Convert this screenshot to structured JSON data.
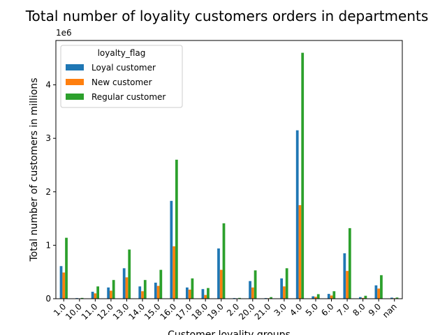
{
  "chart_data": {
    "type": "bar",
    "title": "Total number of loyality customers orders in departments",
    "xlabel": "Customer loyality groups",
    "ylabel": "Total number of customers in millions",
    "y_offset_label": "1e6",
    "ylim": [
      0,
      4.83
    ],
    "yticks": [
      0,
      1,
      2,
      3,
      4
    ],
    "categories": [
      "1.0",
      "10.0",
      "11.0",
      "12.0",
      "13.0",
      "14.0",
      "15.0",
      "16.0",
      "17.0",
      "18.0",
      "19.0",
      "2.0",
      "20.0",
      "21.0",
      "3.0",
      "4.0",
      "5.0",
      "6.0",
      "7.0",
      "8.0",
      "9.0",
      "nan"
    ],
    "legend": {
      "title": "loyalty_flag",
      "position": "upper-left"
    },
    "series": [
      {
        "name": "Loyal customer",
        "color": "#1f77b4",
        "values": [
          0.61,
          0.012,
          0.13,
          0.21,
          0.57,
          0.23,
          0.3,
          1.83,
          0.21,
          0.18,
          0.94,
          0.012,
          0.33,
          0.012,
          0.38,
          3.15,
          0.045,
          0.09,
          0.85,
          0.03,
          0.25,
          0.02
        ]
      },
      {
        "name": "New customer",
        "color": "#ff7f0e",
        "values": [
          0.49,
          0.006,
          0.1,
          0.15,
          0.4,
          0.14,
          0.24,
          0.98,
          0.17,
          0.07,
          0.54,
          0.006,
          0.21,
          0.009,
          0.23,
          1.75,
          0.035,
          0.06,
          0.52,
          0.015,
          0.19,
          0.009
        ]
      },
      {
        "name": "Regular customer",
        "color": "#2ca02c",
        "values": [
          1.14,
          0.015,
          0.23,
          0.35,
          0.92,
          0.35,
          0.54,
          2.6,
          0.38,
          0.2,
          1.41,
          0.015,
          0.53,
          0.03,
          0.57,
          4.6,
          0.085,
          0.14,
          1.32,
          0.055,
          0.44,
          0.022
        ]
      }
    ]
  }
}
